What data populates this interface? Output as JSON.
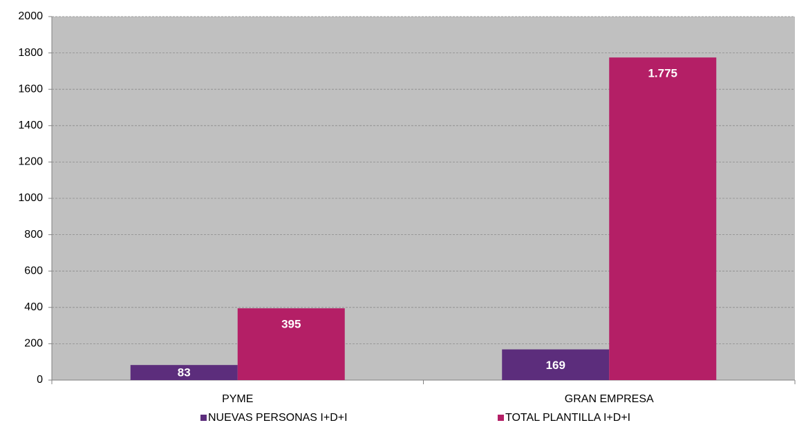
{
  "chart_data": {
    "type": "bar",
    "categories": [
      "PYME",
      "GRAN EMPRESA"
    ],
    "series": [
      {
        "name": "NUEVAS PERSONAS I+D+I",
        "color": "#5c2d7c",
        "values": [
          83,
          169
        ],
        "value_labels": [
          "83",
          "169"
        ]
      },
      {
        "name": "TOTAL PLANTILLA I+D+I",
        "color": "#b41f66",
        "values": [
          395,
          1775
        ],
        "value_labels": [
          "395",
          "1.775"
        ]
      }
    ],
    "ylim": [
      0,
      2000
    ],
    "yticks": [
      0,
      200,
      400,
      600,
      800,
      1000,
      1200,
      1400,
      1600,
      1800,
      2000
    ],
    "grid": true,
    "legend": "bottom"
  }
}
